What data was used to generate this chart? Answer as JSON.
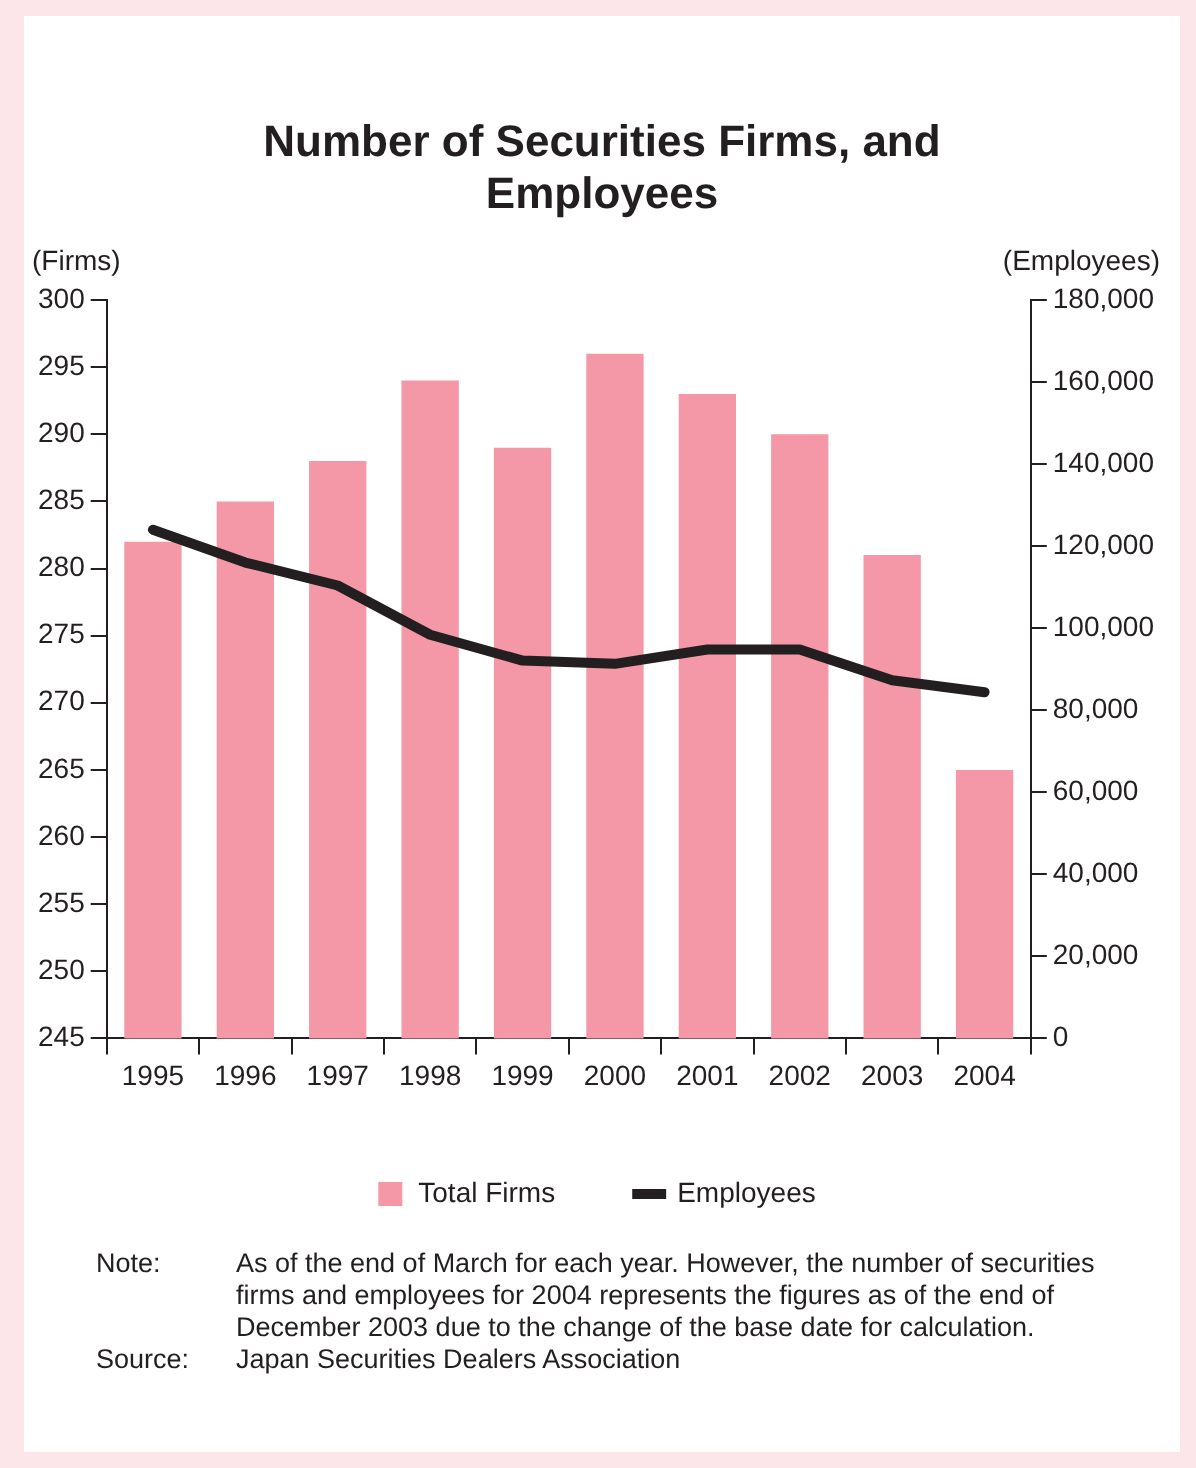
{
  "chart_data": {
    "type": "bar",
    "title": "Number of Securities Firms, and Employees",
    "categories": [
      "1995",
      "1996",
      "1997",
      "1998",
      "1999",
      "2000",
      "2001",
      "2002",
      "2003",
      "2004"
    ],
    "series": [
      {
        "name": "Total Firms",
        "color": "#f497a6",
        "values": [
          282,
          285,
          288,
          294,
          289,
          296,
          293,
          290,
          281,
          265
        ]
      },
      {
        "name": "Employees",
        "type": "line",
        "axis": "y2",
        "color": "#231f20",
        "values": [
          124000,
          116000,
          110400,
          98400,
          92100,
          91300,
          94800,
          94800,
          87300,
          84400
        ]
      }
    ],
    "ylabel": "(Firms)",
    "y2label": "(Employees)",
    "ylim": [
      245,
      300
    ],
    "yticks": [
      245,
      250,
      255,
      260,
      265,
      270,
      275,
      280,
      285,
      290,
      295,
      300
    ],
    "y2lim": [
      0,
      180000
    ],
    "y2ticks": [
      {
        "value": 0,
        "label": "0"
      },
      {
        "value": 20000,
        "label": "20,000"
      },
      {
        "value": 40000,
        "label": "40,000"
      },
      {
        "value": 60000,
        "label": "60,000"
      },
      {
        "value": 80000,
        "label": "80,000"
      },
      {
        "value": 100000,
        "label": "100,000"
      },
      {
        "value": 120000,
        "label": "120,000"
      },
      {
        "value": 140000,
        "label": "140,000"
      },
      {
        "value": 160000,
        "label": "160,000"
      },
      {
        "value": 180000,
        "label": "180,000"
      }
    ],
    "legend": "bottom",
    "grid": false,
    "marker": "none",
    "line_style": "solid",
    "annotations": [
      "Note: As of the end of March for each year. However, the number of securities firms and employees for 2004 represents the figures as of the end of December 2003 due to the change of the base date for calculation.",
      "Source: Japan Securities Dealers Association"
    ]
  }
}
